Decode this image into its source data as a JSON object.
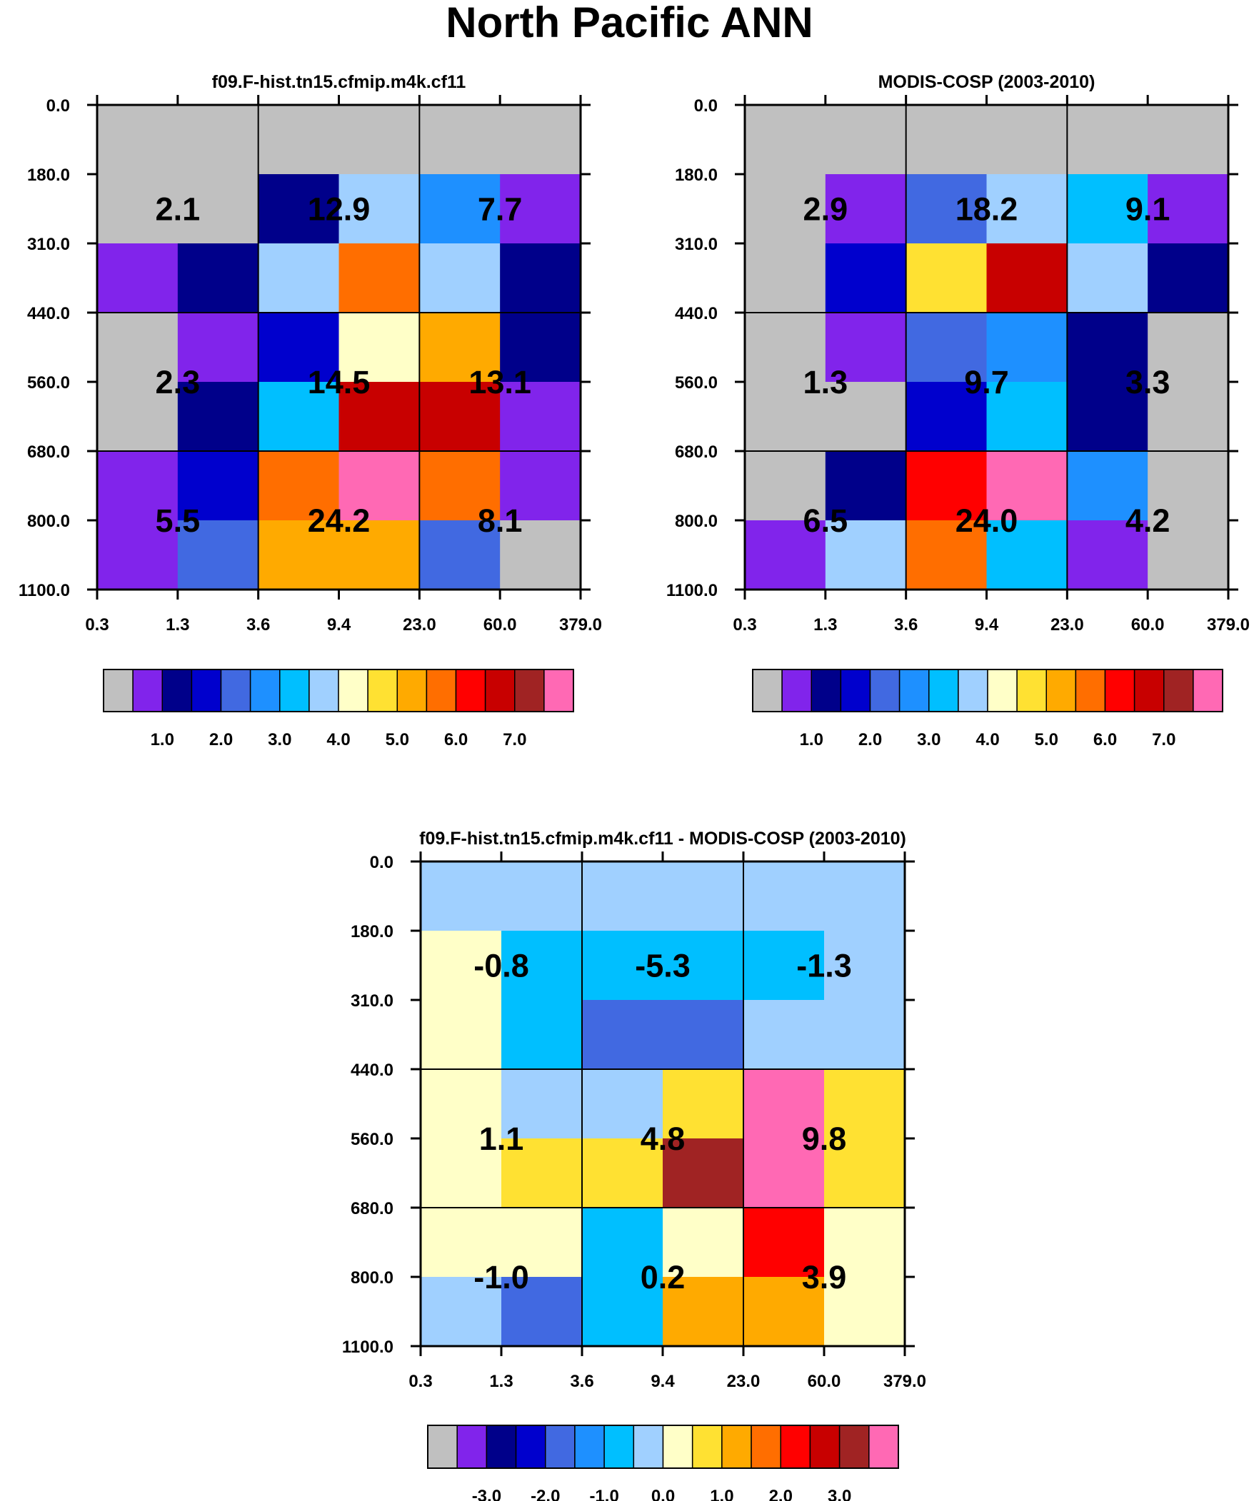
{
  "figure": {
    "title": "North Pacific ANN"
  },
  "chart_data": [
    {
      "type": "heatmap",
      "title": "f09.F-hist.tn15.cfmip.m4k.cf11",
      "xlabel": "",
      "ylabel": "",
      "x_ticks": [
        "0.3",
        "1.3",
        "3.6",
        "9.4",
        "23.0",
        "60.0",
        "379.0"
      ],
      "y_ticks": [
        "0.0",
        "180.0",
        "310.0",
        "440.0",
        "560.0",
        "680.0",
        "800.0",
        "1100.0"
      ],
      "cells": [
        [
          0,
          0,
          0,
          0,
          0,
          0
        ],
        [
          0,
          0,
          2,
          7,
          5,
          1
        ],
        [
          1,
          2,
          7,
          11,
          7,
          2
        ],
        [
          0,
          1,
          3,
          8,
          10,
          2
        ],
        [
          0,
          2,
          6,
          13,
          13,
          1
        ],
        [
          1,
          3,
          11,
          15,
          11,
          1
        ],
        [
          1,
          4,
          10,
          10,
          4,
          0
        ]
      ],
      "summary_labels": [
        [
          "2.1",
          "12.9",
          "7.7"
        ],
        [
          "2.3",
          "14.5",
          "13.1"
        ],
        [
          "5.5",
          "24.2",
          "8.1"
        ]
      ],
      "colorbar": {
        "colors": [
          "#c0c0c0",
          "#8124eb",
          "#00008a",
          "#0000cd",
          "#4169e1",
          "#1e90ff",
          "#00bfff",
          "#a0d0ff",
          "#ffffc8",
          "#ffe132",
          "#ffaa00",
          "#ff6e00",
          "#ff0000",
          "#c80000",
          "#a02323",
          "#ff69b4"
        ],
        "labels": [
          "1.0",
          "2.0",
          "3.0",
          "4.0",
          "5.0",
          "6.0",
          "7.0"
        ]
      }
    },
    {
      "type": "heatmap",
      "title": "MODIS-COSP (2003-2010)",
      "xlabel": "",
      "ylabel": "",
      "x_ticks": [
        "0.3",
        "1.3",
        "3.6",
        "9.4",
        "23.0",
        "60.0",
        "379.0"
      ],
      "y_ticks": [
        "0.0",
        "180.0",
        "310.0",
        "440.0",
        "560.0",
        "680.0",
        "800.0",
        "1100.0"
      ],
      "cells": [
        [
          0,
          0,
          0,
          0,
          0,
          0
        ],
        [
          0,
          1,
          4,
          7,
          6,
          1
        ],
        [
          0,
          3,
          9,
          13,
          7,
          2
        ],
        [
          0,
          1,
          4,
          5,
          2,
          0
        ],
        [
          0,
          0,
          3,
          6,
          2,
          0
        ],
        [
          0,
          2,
          12,
          15,
          5,
          0
        ],
        [
          1,
          7,
          11,
          6,
          1,
          0
        ]
      ],
      "summary_labels": [
        [
          "2.9",
          "18.2",
          "9.1"
        ],
        [
          "1.3",
          "9.7",
          "3.3"
        ],
        [
          "6.5",
          "24.0",
          "4.2"
        ]
      ],
      "colorbar": {
        "colors": [
          "#c0c0c0",
          "#8124eb",
          "#00008a",
          "#0000cd",
          "#4169e1",
          "#1e90ff",
          "#00bfff",
          "#a0d0ff",
          "#ffffc8",
          "#ffe132",
          "#ffaa00",
          "#ff6e00",
          "#ff0000",
          "#c80000",
          "#a02323",
          "#ff69b4"
        ],
        "labels": [
          "1.0",
          "2.0",
          "3.0",
          "4.0",
          "5.0",
          "6.0",
          "7.0"
        ]
      }
    },
    {
      "type": "heatmap",
      "title": "f09.F-hist.tn15.cfmip.m4k.cf11 - MODIS-COSP (2003-2010)",
      "xlabel": "",
      "ylabel": "",
      "x_ticks": [
        "0.3",
        "1.3",
        "3.6",
        "9.4",
        "23.0",
        "60.0",
        "379.0"
      ],
      "y_ticks": [
        "0.0",
        "180.0",
        "310.0",
        "440.0",
        "560.0",
        "680.0",
        "800.0",
        "1100.0"
      ],
      "cells": [
        [
          7,
          7,
          7,
          7,
          7,
          7
        ],
        [
          8,
          6,
          6,
          6,
          6,
          7
        ],
        [
          8,
          6,
          4,
          4,
          7,
          7
        ],
        [
          8,
          7,
          7,
          9,
          15,
          9
        ],
        [
          8,
          9,
          9,
          14,
          15,
          9
        ],
        [
          8,
          8,
          6,
          8,
          12,
          8
        ],
        [
          7,
          4,
          6,
          10,
          10,
          8
        ]
      ],
      "summary_labels": [
        [
          "-0.8",
          "-5.3",
          "-1.3"
        ],
        [
          "1.1",
          "4.8",
          "9.8"
        ],
        [
          "-1.0",
          "0.2",
          "3.9"
        ]
      ],
      "colorbar": {
        "colors": [
          "#c0c0c0",
          "#8124eb",
          "#00008a",
          "#0000cd",
          "#4169e1",
          "#1e90ff",
          "#00bfff",
          "#a0d0ff",
          "#ffffc8",
          "#ffe132",
          "#ffaa00",
          "#ff6e00",
          "#ff0000",
          "#c80000",
          "#a02323",
          "#ff69b4"
        ],
        "labels": [
          "-3.0",
          "-2.0",
          "-1.0",
          "0.0",
          "1.0",
          "2.0",
          "3.0"
        ]
      }
    }
  ]
}
